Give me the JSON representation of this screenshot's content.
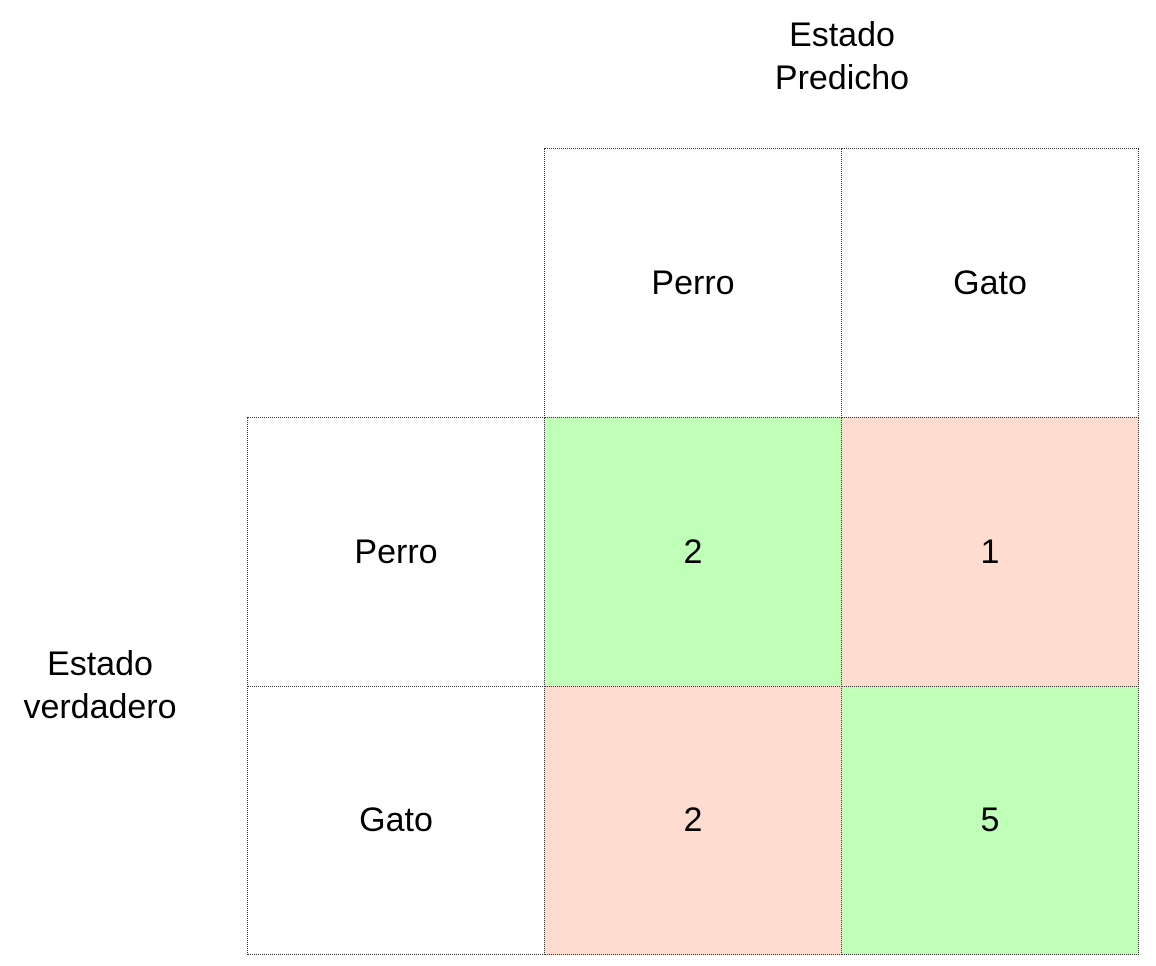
{
  "predicted_title": {
    "line1": "Estado",
    "line2": "Predicho"
  },
  "true_title": {
    "line1": "Estado",
    "line2": "verdadero"
  },
  "predicted_labels": [
    "Perro",
    "Gato"
  ],
  "true_labels": [
    "Perro",
    "Gato"
  ],
  "matrix": [
    [
      "2",
      "1"
    ],
    [
      "2",
      "5"
    ]
  ],
  "colors": {
    "correct": "#bfffb8",
    "incorrect": "#ffdcd0",
    "border": "#333333"
  }
}
